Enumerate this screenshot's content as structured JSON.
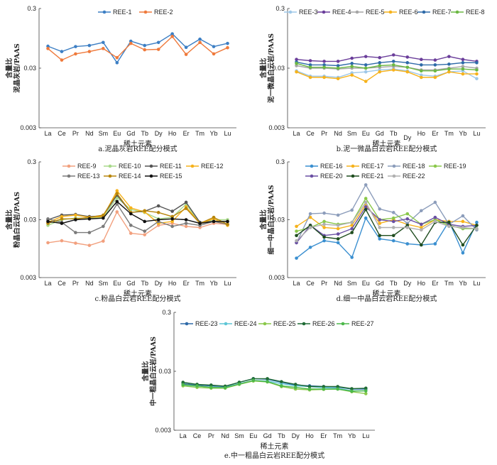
{
  "chart_data": [
    {
      "type": "line",
      "caption": "a.泥晶灰岩REE配分模式",
      "xlabel": "稀土元素",
      "ylabel_lines": [
        "含量比",
        "泥晶灰岩/PAAS"
      ],
      "yscale": "log",
      "ylim": [
        0.003,
        0.3
      ],
      "yticks": [
        "0.3",
        "0.03",
        "0.003"
      ],
      "categories": [
        "La",
        "Ce",
        "Pr",
        "Nd",
        "Sm",
        "Eu",
        "Gd",
        "Tb",
        "Dy",
        "Ho",
        "Er",
        "Tm",
        "Yb",
        "Lu"
      ],
      "legend": "top",
      "series": [
        {
          "name": "REE-1",
          "color": "#3d7fc4",
          "values": [
            0.07,
            0.057,
            0.069,
            0.072,
            0.081,
            0.037,
            0.085,
            0.072,
            0.081,
            0.113,
            0.067,
            0.092,
            0.069,
            0.078
          ]
        },
        {
          "name": "REE-2",
          "color": "#ef7a3c",
          "values": [
            0.064,
            0.041,
            0.052,
            0.057,
            0.064,
            0.045,
            0.078,
            0.061,
            0.062,
            0.102,
            0.051,
            0.081,
            0.052,
            0.066
          ]
        }
      ]
    },
    {
      "type": "line",
      "caption": "b.泥一微晶白云岩REE配分模式",
      "xlabel": "稀土元素",
      "ylabel_lines": [
        "含量比",
        "泥一微晶白云岩/PAAS"
      ],
      "yscale": "log",
      "ylim": [
        0.003,
        0.3
      ],
      "yticks": [
        "0.3",
        "0.03",
        "0.003"
      ],
      "categories": [
        "La",
        "Ce",
        "Pr",
        "Nd",
        "Sm",
        "Eu",
        "Gd",
        "Tb",
        "Dy",
        "Ho",
        "Er",
        "Tm",
        "Yb",
        "Lu"
      ],
      "legend": "top",
      "series": [
        {
          "name": "REE-3",
          "color": "#9fc8e8",
          "values": [
            0.027,
            0.022,
            0.022,
            0.021,
            0.025,
            0.026,
            0.028,
            0.029,
            0.027,
            0.023,
            0.022,
            0.026,
            0.027,
            0.02
          ]
        },
        {
          "name": "REE-4",
          "color": "#6a3d9a",
          "values": [
            0.042,
            0.04,
            0.039,
            0.039,
            0.044,
            0.047,
            0.045,
            0.05,
            0.046,
            0.042,
            0.041,
            0.047,
            0.042,
            0.039
          ]
        },
        {
          "name": "REE-5",
          "color": "#a6a6a6",
          "values": [
            0.033,
            0.03,
            0.03,
            0.029,
            0.03,
            0.03,
            0.031,
            0.032,
            0.031,
            0.028,
            0.028,
            0.03,
            0.032,
            0.03
          ]
        },
        {
          "name": "REE-6",
          "color": "#f6b21b",
          "values": [
            0.026,
            0.021,
            0.021,
            0.02,
            0.023,
            0.018,
            0.026,
            0.028,
            0.026,
            0.021,
            0.021,
            0.026,
            0.024,
            0.024
          ]
        },
        {
          "name": "REE-7",
          "color": "#2e6aa8",
          "values": [
            0.038,
            0.034,
            0.034,
            0.033,
            0.036,
            0.034,
            0.037,
            0.039,
            0.037,
            0.034,
            0.034,
            0.035,
            0.037,
            0.037
          ]
        },
        {
          "name": "REE-8",
          "color": "#6bb843",
          "values": [
            0.036,
            0.031,
            0.031,
            0.03,
            0.032,
            0.03,
            0.033,
            0.034,
            0.031,
            0.027,
            0.027,
            0.029,
            0.029,
            0.028
          ]
        }
      ]
    },
    {
      "type": "line",
      "caption": "c.粉晶白云岩REE配分模式",
      "xlabel": "稀土元素",
      "ylabel_lines": [
        "含量比",
        "粉晶白云岩/PAAS"
      ],
      "yscale": "log",
      "ylim": [
        0.003,
        0.3
      ],
      "yticks": [
        "0.3",
        "0.03",
        "0.003"
      ],
      "categories": [
        "La",
        "Ce",
        "Pr",
        "Nd",
        "Sm",
        "Eu",
        "Gd",
        "Tb",
        "Dy",
        "Ho",
        "Er",
        "Tm",
        "Yb",
        "Lu"
      ],
      "legend": "top",
      "series": [
        {
          "name": "REE-9",
          "color": "#f2a07e",
          "values": [
            0.012,
            0.013,
            0.0118,
            0.0108,
            0.0128,
            0.041,
            0.0175,
            0.0165,
            0.024,
            0.026,
            0.023,
            0.022,
            0.026,
            0.025
          ]
        },
        {
          "name": "REE-10",
          "color": "#a8d98a",
          "values": [
            0.024,
            0.03,
            0.032,
            0.032,
            0.033,
            0.072,
            0.045,
            0.04,
            0.031,
            0.033,
            0.056,
            0.026,
            0.03,
            0.03
          ]
        },
        {
          "name": "REE-11",
          "color": "#555555",
          "values": [
            0.03,
            0.036,
            0.037,
            0.034,
            0.035,
            0.08,
            0.04,
            0.042,
            0.052,
            0.042,
            0.06,
            0.027,
            0.028,
            0.028
          ]
        },
        {
          "name": "REE-12",
          "color": "#f6b21b",
          "values": [
            0.027,
            0.034,
            0.036,
            0.033,
            0.034,
            0.095,
            0.048,
            0.041,
            0.026,
            0.028,
            0.05,
            0.026,
            0.031,
            0.024
          ]
        },
        {
          "name": "REE-13",
          "color": "#7a7a7a",
          "values": [
            0.031,
            0.027,
            0.018,
            0.018,
            0.023,
            0.056,
            0.024,
            0.019,
            0.028,
            0.023,
            0.026,
            0.024,
            0.028,
            0.025
          ]
        },
        {
          "name": "REE-14",
          "color": "#b8860b",
          "values": [
            0.026,
            0.031,
            0.031,
            0.033,
            0.036,
            0.085,
            0.04,
            0.043,
            0.04,
            0.034,
            0.047,
            0.026,
            0.033,
            0.025
          ]
        },
        {
          "name": "REE-15",
          "color": "#111111",
          "values": [
            0.028,
            0.026,
            0.03,
            0.031,
            0.032,
            0.062,
            0.038,
            0.028,
            0.03,
            0.031,
            0.03,
            0.026,
            0.028,
            0.028
          ]
        }
      ]
    },
    {
      "type": "line",
      "caption": "d.细一中晶白云岩REE配分模式",
      "xlabel": "稀土元素",
      "ylabel_lines": [
        "含量比",
        "细一中晶白云岩/PAAS"
      ],
      "yscale": "log",
      "ylim": [
        0.003,
        0.3
      ],
      "yticks": [
        "0.3",
        "0.03",
        "0.003"
      ],
      "categories": [
        "La",
        "Ce",
        "Pr",
        "Nd",
        "Sm",
        "Eu",
        "Gd",
        "Tb",
        "Dy",
        "Ho",
        "Er",
        "Tm",
        "Yb",
        "Lu"
      ],
      "legend": "top",
      "series": [
        {
          "name": "REE-16",
          "color": "#3a8fd0",
          "values": [
            0.0065,
            0.01,
            0.013,
            0.012,
            0.0067,
            0.032,
            0.014,
            0.013,
            0.0115,
            0.011,
            0.0115,
            0.028,
            0.008,
            0.027
          ]
        },
        {
          "name": "REE-17",
          "color": "#f6b21b",
          "values": [
            0.023,
            0.033,
            0.022,
            0.021,
            0.024,
            0.055,
            0.026,
            0.03,
            0.025,
            0.022,
            0.03,
            0.028,
            0.028,
            0.024
          ]
        },
        {
          "name": "REE-18",
          "color": "#8c9dbb",
          "values": [
            0.012,
            0.038,
            0.039,
            0.036,
            0.044,
            0.12,
            0.046,
            0.04,
            0.026,
            0.043,
            0.06,
            0.025,
            0.035,
            0.02
          ]
        },
        {
          "name": "REE-19",
          "color": "#8ac84a",
          "values": [
            0.019,
            0.022,
            0.028,
            0.025,
            0.027,
            0.07,
            0.03,
            0.032,
            0.038,
            0.025,
            0.03,
            0.024,
            0.021,
            0.021
          ]
        },
        {
          "name": "REE-20",
          "color": "#6a4fa3",
          "values": [
            0.012,
            0.024,
            0.016,
            0.017,
            0.021,
            0.05,
            0.03,
            0.028,
            0.031,
            0.025,
            0.033,
            0.025,
            0.023,
            0.024
          ]
        },
        {
          "name": "REE-21",
          "color": "#1f4d1f",
          "values": [
            0.016,
            0.024,
            0.015,
            0.014,
            0.018,
            0.045,
            0.016,
            0.016,
            0.024,
            0.011,
            0.027,
            0.027,
            0.011,
            0.024
          ]
        },
        {
          "name": "REE-22",
          "color": "#b0b0b0",
          "values": [
            0.013,
            0.022,
            0.025,
            0.024,
            0.027,
            0.06,
            0.022,
            0.022,
            0.022,
            0.02,
            0.028,
            0.023,
            0.022,
            0.021
          ]
        }
      ]
    },
    {
      "type": "line",
      "caption": "e.中一粗晶白云岩REE配分模式",
      "xlabel": "稀土元素",
      "ylabel_lines": [
        "含量比",
        "中一粗晶白云岩/PAAS"
      ],
      "yscale": "log",
      "ylim": [
        0.003,
        0.3
      ],
      "yticks": [
        "0.3",
        "0.03",
        "0.003"
      ],
      "categories": [
        "La",
        "Ce",
        "Pr",
        "Nd",
        "Sm",
        "Eu",
        "Gd",
        "Tb",
        "Dy",
        "Ho",
        "Er",
        "Tm",
        "Yb",
        "Lu"
      ],
      "legend": "top",
      "series": [
        {
          "name": "REE-23",
          "color": "#2e6aa8",
          "values": [
            0.0185,
            0.0175,
            0.017,
            0.0165,
            0.0195,
            0.0225,
            0.022,
            0.0195,
            0.0175,
            0.017,
            0.0165,
            0.0162,
            0.015,
            0.015
          ]
        },
        {
          "name": "REE-24",
          "color": "#5ec6d6",
          "values": [
            0.0175,
            0.0168,
            0.0162,
            0.016,
            0.0185,
            0.021,
            0.0205,
            0.0185,
            0.017,
            0.0165,
            0.0158,
            0.0155,
            0.014,
            0.014
          ]
        },
        {
          "name": "REE-25",
          "color": "#8ac84a",
          "values": [
            0.017,
            0.016,
            0.0155,
            0.0155,
            0.018,
            0.0205,
            0.0198,
            0.0165,
            0.015,
            0.0145,
            0.0148,
            0.015,
            0.0135,
            0.0125
          ]
        },
        {
          "name": "REE-26",
          "color": "#1f6b35",
          "values": [
            0.0195,
            0.018,
            0.0175,
            0.0168,
            0.0195,
            0.0225,
            0.0225,
            0.02,
            0.018,
            0.0165,
            0.0165,
            0.0165,
            0.0152,
            0.0155
          ]
        },
        {
          "name": "REE-27",
          "color": "#4cb84a",
          "values": [
            0.0178,
            0.017,
            0.016,
            0.0158,
            0.0182,
            0.021,
            0.02,
            0.017,
            0.016,
            0.015,
            0.015,
            0.015,
            0.0138,
            0.014
          ]
        }
      ]
    }
  ]
}
